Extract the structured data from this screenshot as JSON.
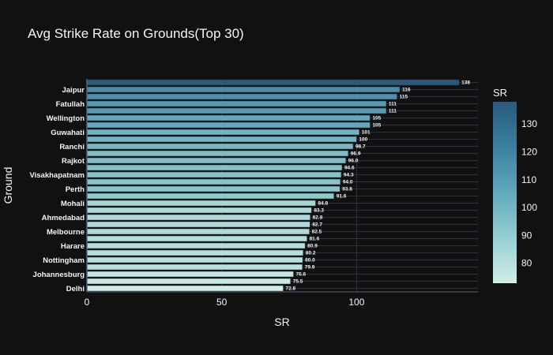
{
  "chart_data": {
    "type": "bar",
    "orientation": "horizontal",
    "title": "Avg Strike Rate on Grounds(Top 30)",
    "xlabel": "SR",
    "ylabel": "Ground",
    "xlim": [
      0,
      145
    ],
    "xticks": [
      0,
      50,
      100
    ],
    "grid": true,
    "colorscale": [
      "#d2ede8",
      "#96cfd1",
      "#62a8bd",
      "#3b7fa0",
      "#2a5a7d"
    ],
    "colorbar": {
      "title": "SR",
      "range": [
        72.8,
        138
      ],
      "ticks": [
        80,
        90,
        100,
        110,
        120,
        130
      ]
    },
    "categories": [
      "",
      "Jaipur",
      "",
      "Fatullah",
      "",
      "Wellington",
      "",
      "Guwahati",
      "",
      "Ranchi",
      "",
      "Rajkot",
      "",
      "Visakhapatnam",
      "",
      "Perth",
      "",
      "Mohali",
      "",
      "Ahmedabad",
      "",
      "Melbourne",
      "",
      "Harare",
      "",
      "Nottingham",
      "",
      "Johannesburg",
      "",
      "Delhi"
    ],
    "values": [
      138,
      116,
      115,
      111,
      111,
      105,
      105,
      101,
      100,
      98.7,
      96.9,
      96.0,
      94.6,
      94.3,
      94.0,
      93.8,
      91.6,
      84.8,
      83.3,
      82.8,
      82.7,
      82.5,
      81.6,
      80.9,
      80.2,
      80.0,
      79.9,
      76.6,
      75.5,
      72.8
    ],
    "value_labels": [
      "138",
      "116",
      "115",
      "111",
      "111",
      "105",
      "105",
      "101",
      "100",
      "98.7",
      "96.9",
      "96.0",
      "94.6",
      "94.3",
      "94.0",
      "93.8",
      "91.6",
      "84.8",
      "83.3",
      "82.8",
      "82.7",
      "82.5",
      "81.6",
      "80.9",
      "80.2",
      "80.0",
      "79.9",
      "76.6",
      "75.5",
      "72.8"
    ]
  }
}
